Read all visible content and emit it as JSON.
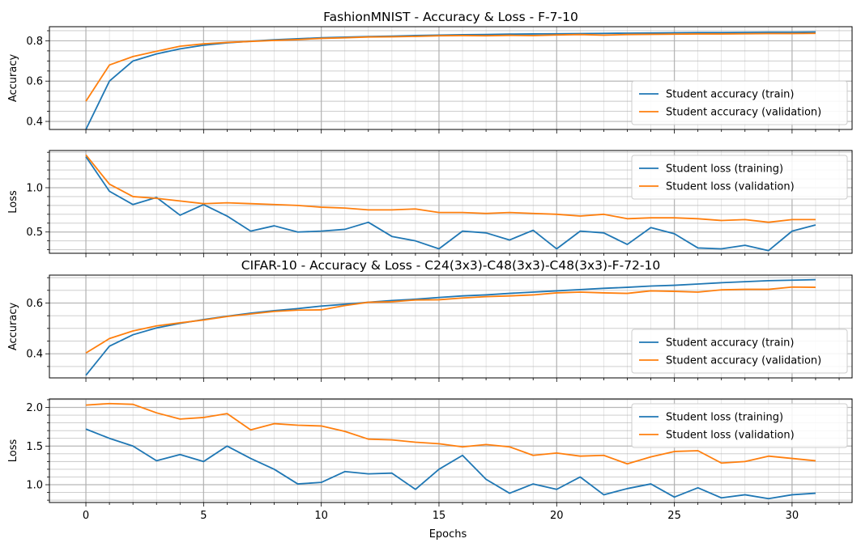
{
  "figure": {
    "xlabel": "Epochs",
    "colors": {
      "train": "#1f77b4",
      "validation": "#ff7f0e",
      "grid": "#b0b0b0"
    }
  },
  "chart_data": [
    {
      "type": "line",
      "title": "FashionMNIST - Accuracy & Loss - F-7-10",
      "xlabel": "",
      "ylabel": "Accuracy",
      "xlim": [
        -1.55,
        32.55
      ],
      "ylim": [
        0.36,
        0.87
      ],
      "yticks": [
        0.4,
        0.6,
        0.8
      ],
      "ytick_labels": [
        "0.4",
        "0.6",
        "0.8"
      ],
      "grid": true,
      "legend_position": "lower-right",
      "series": [
        {
          "name": "Student accuracy (train)",
          "color": "#1f77b4",
          "values": [
            0.36,
            0.6,
            0.7,
            0.735,
            0.76,
            0.778,
            0.79,
            0.798,
            0.805,
            0.81,
            0.815,
            0.818,
            0.821,
            0.823,
            0.826,
            0.828,
            0.83,
            0.831,
            0.833,
            0.834,
            0.835,
            0.836,
            0.837,
            0.838,
            0.839,
            0.84,
            0.841,
            0.841,
            0.842,
            0.843,
            0.843,
            0.844
          ]
        },
        {
          "name": "Student accuracy (validation)",
          "color": "#ff7f0e",
          "values": [
            0.5,
            0.68,
            0.722,
            0.748,
            0.773,
            0.785,
            0.792,
            0.797,
            0.802,
            0.806,
            0.812,
            0.815,
            0.819,
            0.82,
            0.822,
            0.825,
            0.826,
            0.825,
            0.827,
            0.826,
            0.829,
            0.831,
            0.828,
            0.831,
            0.832,
            0.833,
            0.834,
            0.834,
            0.835,
            0.836,
            0.836,
            0.837
          ]
        }
      ]
    },
    {
      "type": "line",
      "title": "",
      "xlabel": "",
      "ylabel": "Loss",
      "xlim": [
        -1.55,
        32.55
      ],
      "ylim": [
        0.26,
        1.42
      ],
      "yticks": [
        0.5,
        1.0
      ],
      "ytick_labels": [
        "0.5",
        "1.0"
      ],
      "grid": true,
      "legend_position": "upper-right",
      "series": [
        {
          "name": "Student loss (training)",
          "color": "#1f77b4",
          "values": [
            1.35,
            0.96,
            0.81,
            0.89,
            0.69,
            0.81,
            0.68,
            0.51,
            0.57,
            0.5,
            0.51,
            0.53,
            0.61,
            0.45,
            0.4,
            0.31,
            0.51,
            0.49,
            0.41,
            0.52,
            0.31,
            0.51,
            0.49,
            0.36,
            0.55,
            0.48,
            0.32,
            0.31,
            0.35,
            0.29,
            0.51,
            0.58
          ]
        },
        {
          "name": "Student loss (validation)",
          "color": "#ff7f0e",
          "values": [
            1.37,
            1.04,
            0.9,
            0.88,
            0.85,
            0.82,
            0.83,
            0.82,
            0.81,
            0.8,
            0.78,
            0.77,
            0.75,
            0.75,
            0.76,
            0.72,
            0.72,
            0.71,
            0.72,
            0.71,
            0.7,
            0.68,
            0.7,
            0.65,
            0.66,
            0.66,
            0.65,
            0.63,
            0.64,
            0.61,
            0.64,
            0.64
          ]
        }
      ]
    },
    {
      "type": "line",
      "title": "CIFAR-10 - Accuracy & Loss - C24(3x3)-C48(3x3)-C48(3x3)-F-72-10",
      "xlabel": "",
      "ylabel": "Accuracy",
      "xlim": [
        -1.55,
        32.55
      ],
      "ylim": [
        0.305,
        0.71
      ],
      "yticks": [
        0.4,
        0.6
      ],
      "ytick_labels": [
        "0.4",
        "0.6"
      ],
      "grid": true,
      "legend_position": "lower-right",
      "series": [
        {
          "name": "Student accuracy (train)",
          "color": "#1f77b4",
          "values": [
            0.315,
            0.43,
            0.475,
            0.502,
            0.52,
            0.535,
            0.548,
            0.56,
            0.57,
            0.578,
            0.588,
            0.595,
            0.603,
            0.61,
            0.615,
            0.622,
            0.628,
            0.632,
            0.638,
            0.643,
            0.648,
            0.653,
            0.658,
            0.662,
            0.667,
            0.67,
            0.675,
            0.68,
            0.684,
            0.688,
            0.69,
            0.692
          ]
        },
        {
          "name": "Student accuracy (validation)",
          "color": "#ff7f0e",
          "values": [
            0.403,
            0.46,
            0.49,
            0.51,
            0.522,
            0.533,
            0.547,
            0.557,
            0.567,
            0.572,
            0.573,
            0.59,
            0.603,
            0.605,
            0.612,
            0.613,
            0.62,
            0.625,
            0.628,
            0.632,
            0.64,
            0.643,
            0.64,
            0.638,
            0.648,
            0.646,
            0.643,
            0.652,
            0.654,
            0.654,
            0.663,
            0.662
          ]
        }
      ]
    },
    {
      "type": "line",
      "title": "",
      "xlabel": "Epochs",
      "ylabel": "Loss",
      "xlim": [
        -1.55,
        32.55
      ],
      "ylim": [
        0.77,
        2.11
      ],
      "yticks": [
        1.0,
        1.5,
        2.0
      ],
      "ytick_labels": [
        "1.0",
        "1.5",
        "2.0"
      ],
      "xticks": [
        0,
        5,
        10,
        15,
        20,
        25,
        30
      ],
      "xtick_labels": [
        "0",
        "5",
        "10",
        "15",
        "20",
        "25",
        "30"
      ],
      "grid": true,
      "legend_position": "upper-right",
      "series": [
        {
          "name": "Student loss (training)",
          "color": "#1f77b4",
          "values": [
            1.72,
            1.6,
            1.5,
            1.31,
            1.39,
            1.3,
            1.5,
            1.34,
            1.2,
            1.01,
            1.03,
            1.17,
            1.14,
            1.15,
            0.94,
            1.2,
            1.38,
            1.07,
            0.89,
            1.01,
            0.94,
            1.1,
            0.87,
            0.95,
            1.01,
            0.84,
            0.96,
            0.83,
            0.87,
            0.82,
            0.87,
            0.89
          ]
        },
        {
          "name": "Student loss (validation)",
          "color": "#ff7f0e",
          "values": [
            2.03,
            2.05,
            2.04,
            1.93,
            1.85,
            1.87,
            1.92,
            1.71,
            1.79,
            1.77,
            1.76,
            1.69,
            1.59,
            1.58,
            1.55,
            1.53,
            1.49,
            1.52,
            1.49,
            1.38,
            1.41,
            1.37,
            1.38,
            1.27,
            1.36,
            1.43,
            1.44,
            1.28,
            1.3,
            1.37,
            1.34,
            1.31
          ]
        }
      ]
    }
  ]
}
